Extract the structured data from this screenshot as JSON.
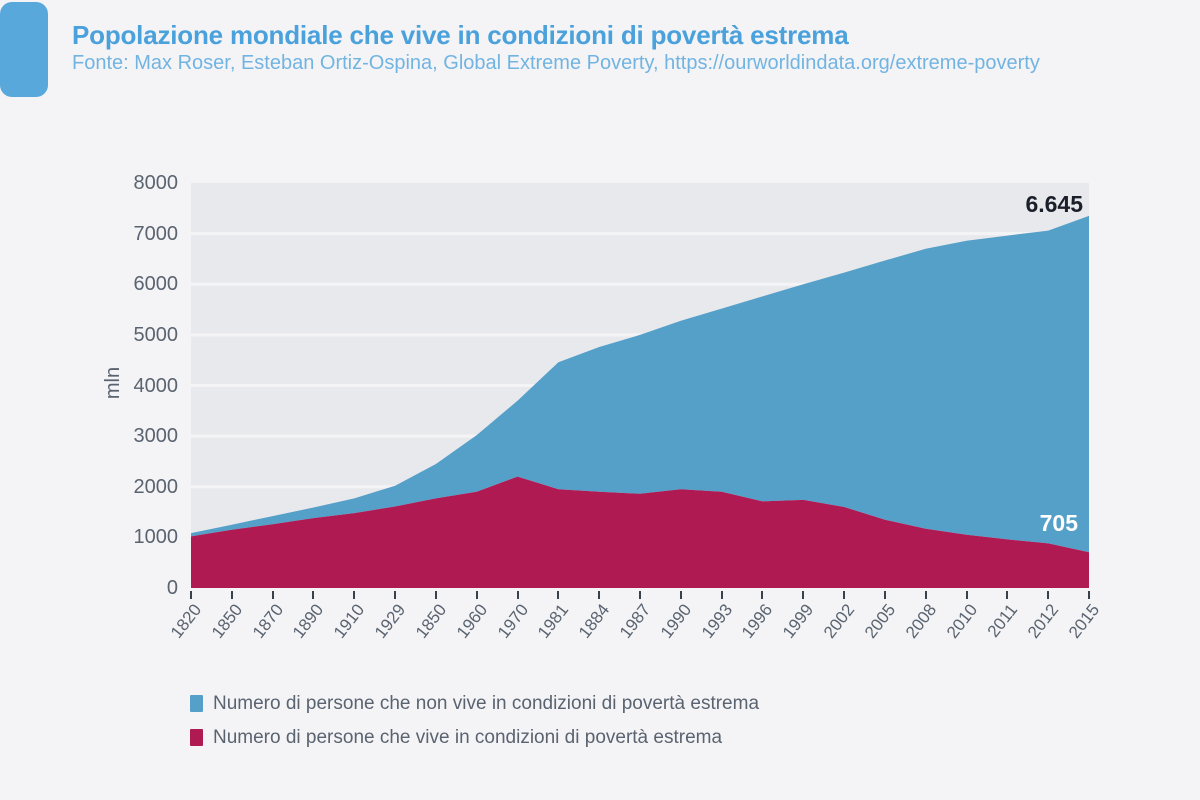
{
  "header": {
    "title": "Popolazione mondiale che vive in condizioni di povertà estrema",
    "source": "Fonte: Max Roser, Esteban Ortiz-Ospina, Global Extreme Poverty, https://ourworldindata.org/extreme-poverty"
  },
  "colors": {
    "page_bg": "#f4f4f6",
    "plot_bg": "#e8e9ed",
    "gridline": "#f4f4f6",
    "axis_text": "#5a6370",
    "tick_mark": "#3a414d",
    "title": "#4aa1db",
    "subtitle": "#72b4e1",
    "accent_bar": "#58a8db",
    "end_label_dark": "#1a1f29",
    "end_label_light": "#ffffff"
  },
  "chart_data": {
    "type": "area",
    "stacked": true,
    "title": "Popolazione mondiale che vive in condizioni di povertà estrema",
    "xlabel": "",
    "ylabel": "mln",
    "ylim": [
      0,
      8000
    ],
    "ytick_step": 1000,
    "yticks": [
      0,
      1000,
      2000,
      3000,
      4000,
      5000,
      6000,
      7000,
      8000
    ],
    "grid": true,
    "legend_position": "bottom",
    "categories": [
      "1820",
      "1850",
      "1870",
      "1890",
      "1910",
      "1929",
      "1850",
      "1960",
      "1970",
      "1981",
      "1884",
      "1987",
      "1990",
      "1993",
      "1996",
      "1999",
      "2002",
      "2005",
      "2008",
      "2010",
      "2011",
      "2012",
      "2015"
    ],
    "series": [
      {
        "name": "Numero di persone che vive in condizioni di povertà estrema",
        "color": "#ae1a51",
        "values": [
          1020,
          1150,
          1260,
          1380,
          1480,
          1610,
          1770,
          1900,
          2200,
          1950,
          1900,
          1860,
          1950,
          1900,
          1710,
          1740,
          1600,
          1350,
          1170,
          1050,
          960,
          880,
          705
        ]
      },
      {
        "name": "Numero di persone che non vive in condizioni di povertà estrema",
        "color": "#55a0c9",
        "values": [
          65,
          100,
          160,
          210,
          290,
          410,
          680,
          1120,
          1500,
          2510,
          2860,
          3140,
          3330,
          3620,
          4050,
          4260,
          4630,
          5120,
          5530,
          5810,
          6000,
          6180,
          6645
        ]
      }
    ],
    "end_labels": [
      {
        "text": "6.645",
        "series": "Numero di persone che non vive in condizioni di povertà estrema"
      },
      {
        "text": "705",
        "series": "Numero di persone che vive in condizioni di povertà estrema"
      }
    ],
    "legend": [
      {
        "label": "Numero di persone che non vive in condizioni di povertà estrema",
        "color": "#55a0c9"
      },
      {
        "label": "Numero di persone che vive in condizioni di povertà estrema",
        "color": "#ae1a51"
      }
    ]
  }
}
